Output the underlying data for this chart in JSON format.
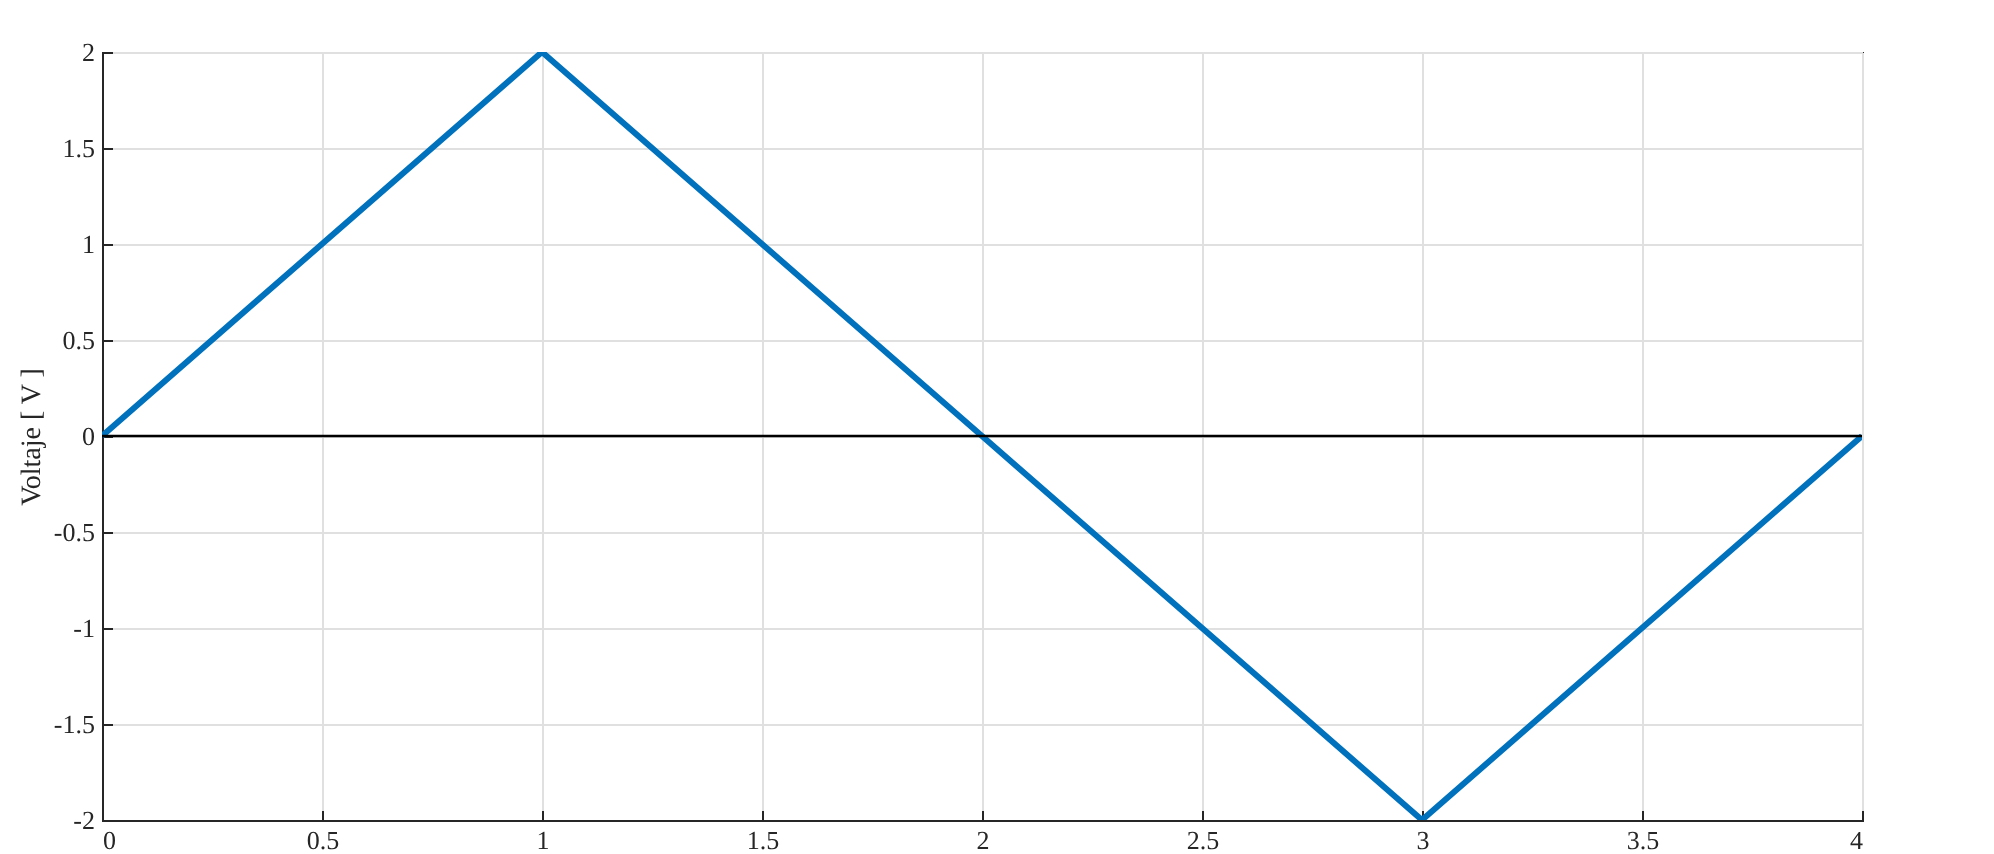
{
  "chart_data": {
    "type": "line",
    "ylabel": "Voltaje [ V ]",
    "x": [
      0,
      1,
      2,
      3,
      4
    ],
    "series": [
      {
        "color": "#0072bd",
        "values": [
          0,
          2,
          0,
          -2,
          0
        ]
      }
    ],
    "xlim": [
      0,
      4
    ],
    "xticks": [
      0,
      0.5,
      1,
      1.5,
      2,
      2.5,
      3,
      3.5,
      4
    ],
    "ylim": [
      -2,
      2
    ],
    "yticks": [
      -2,
      -1.5,
      -1,
      -0.5,
      0,
      0.5,
      1,
      1.5,
      2
    ],
    "ref_lines": [
      {
        "axis": "y",
        "value": 0,
        "color": "#000000"
      }
    ],
    "grid": true,
    "marker": "none",
    "line_style": "solid"
  }
}
